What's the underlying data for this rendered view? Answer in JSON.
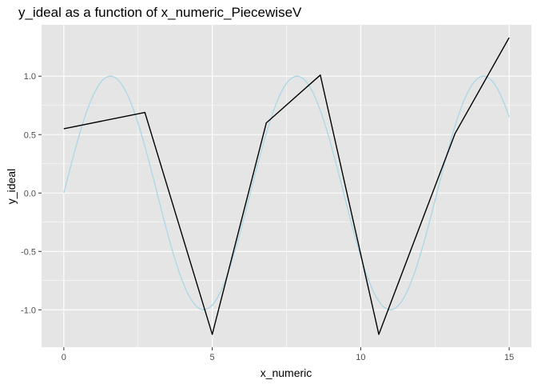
{
  "chart_data": {
    "type": "line",
    "title": "y_ideal as a function of x_numeric_PiecewiseV",
    "xlabel": "x_numeric",
    "ylabel": "y_ideal",
    "xlim": [
      -0.75,
      15.75
    ],
    "ylim": [
      -1.32,
      1.44
    ],
    "x_ticks": [
      0,
      5,
      10,
      15
    ],
    "x_tick_labels": [
      "0",
      "5",
      "10",
      "15"
    ],
    "y_ticks": [
      -1.0,
      -0.5,
      0.0,
      0.5,
      1.0
    ],
    "y_tick_labels": [
      "-1.0",
      "-0.5",
      "0.0",
      "0.5",
      "1.0"
    ],
    "grid": true,
    "panel_background": "#e5e5e5",
    "grid_color": "#ffffff",
    "series": [
      {
        "color": "#add8e6",
        "function": "sin",
        "x_range": [
          0,
          15
        ],
        "samples": 301
      },
      {
        "color": "#000000",
        "x": [
          0,
          2.73,
          5.0,
          6.82,
          8.64,
          10.61,
          13.18,
          15.0
        ],
        "y": [
          0.55,
          0.69,
          -1.21,
          0.6,
          1.01,
          -1.21,
          0.51,
          1.33
        ]
      }
    ]
  }
}
